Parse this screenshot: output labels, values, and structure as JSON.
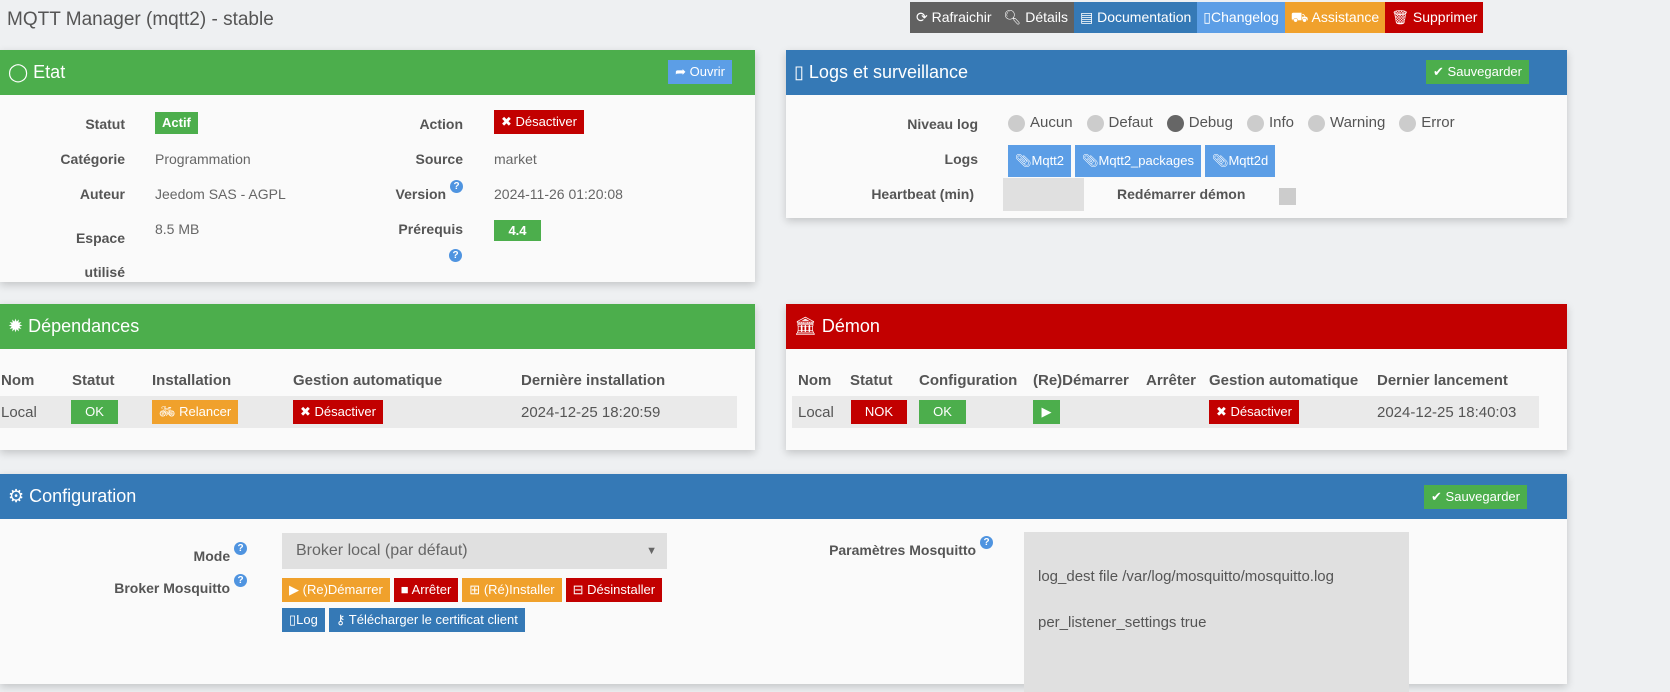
{
  "title": "MQTT Manager (mqtt2) - stable",
  "toolbar": {
    "refresh": "Rafraichir",
    "details": "Détails",
    "documentation": "Documentation",
    "changelog": "Changelog",
    "assistance": "Assistance",
    "delete": "Supprimer"
  },
  "etat": {
    "title": "Etat",
    "open": "Ouvrir",
    "statut_label": "Statut",
    "statut": "Actif",
    "categorie_label": "Catégorie",
    "categorie": "Programmation",
    "auteur_label": "Auteur",
    "auteur": "Jeedom SAS - AGPL",
    "espace_label": "Espace utilisé",
    "espace": "8.5 MB",
    "action_label": "Action",
    "action": "Désactiver",
    "source_label": "Source",
    "source": "market",
    "version_label": "Version",
    "version": "2024-11-26 01:20:08",
    "prerequis_label": "Prérequis",
    "prerequis": "4.4"
  },
  "logs": {
    "title": "Logs et surveillance",
    "save": "Sauvegarder",
    "niveau_label": "Niveau log",
    "levels": [
      "Aucun",
      "Defaut",
      "Debug",
      "Info",
      "Warning",
      "Error"
    ],
    "selected_level": "Debug",
    "logs_label": "Logs",
    "log_buttons": [
      "Mqtt2",
      "Mqtt2_packages",
      "Mqtt2d"
    ],
    "heartbeat_label": "Heartbeat (min)",
    "heartbeat": "",
    "restart_label": "Redémarrer démon"
  },
  "deps": {
    "title": "Dépendances",
    "headers": [
      "Nom",
      "Statut",
      "Installation",
      "Gestion automatique",
      "Dernière installation"
    ],
    "row": {
      "nom": "Local",
      "statut": "OK",
      "installation": "Relancer",
      "gestion": "Désactiver",
      "derniere": "2024-12-25 18:20:59"
    }
  },
  "demon": {
    "title": "Démon",
    "headers": [
      "Nom",
      "Statut",
      "Configuration",
      "(Re)Démarrer",
      "Arrêter",
      "Gestion automatique",
      "Dernier lancement"
    ],
    "row": {
      "nom": "Local",
      "statut": "NOK",
      "configuration": "OK",
      "gestion": "Désactiver",
      "dernier": "2024-12-25 18:40:03"
    }
  },
  "config": {
    "title": "Configuration",
    "save": "Sauvegarder",
    "mode_label": "Mode",
    "mode": "Broker local (par défaut)",
    "broker_label": "Broker Mosquitto",
    "broker_buttons": {
      "start": "(Re)Démarrer",
      "stop": "Arrêter",
      "install": "(Ré)Installer",
      "uninstall": "Désinstaller",
      "log": "Log",
      "cert": "Télécharger le certificat client"
    },
    "params_label": "Paramètres Mosquitto",
    "params": [
      "log_dest file /var/log/mosquitto/mosquitto.log",
      "per_listener_settings true"
    ]
  },
  "colors": {
    "green": "#4cae4c",
    "blue": "#3579b6",
    "red": "#c20000",
    "orange": "#f0a12c",
    "lightblue": "#5c9ee6"
  }
}
